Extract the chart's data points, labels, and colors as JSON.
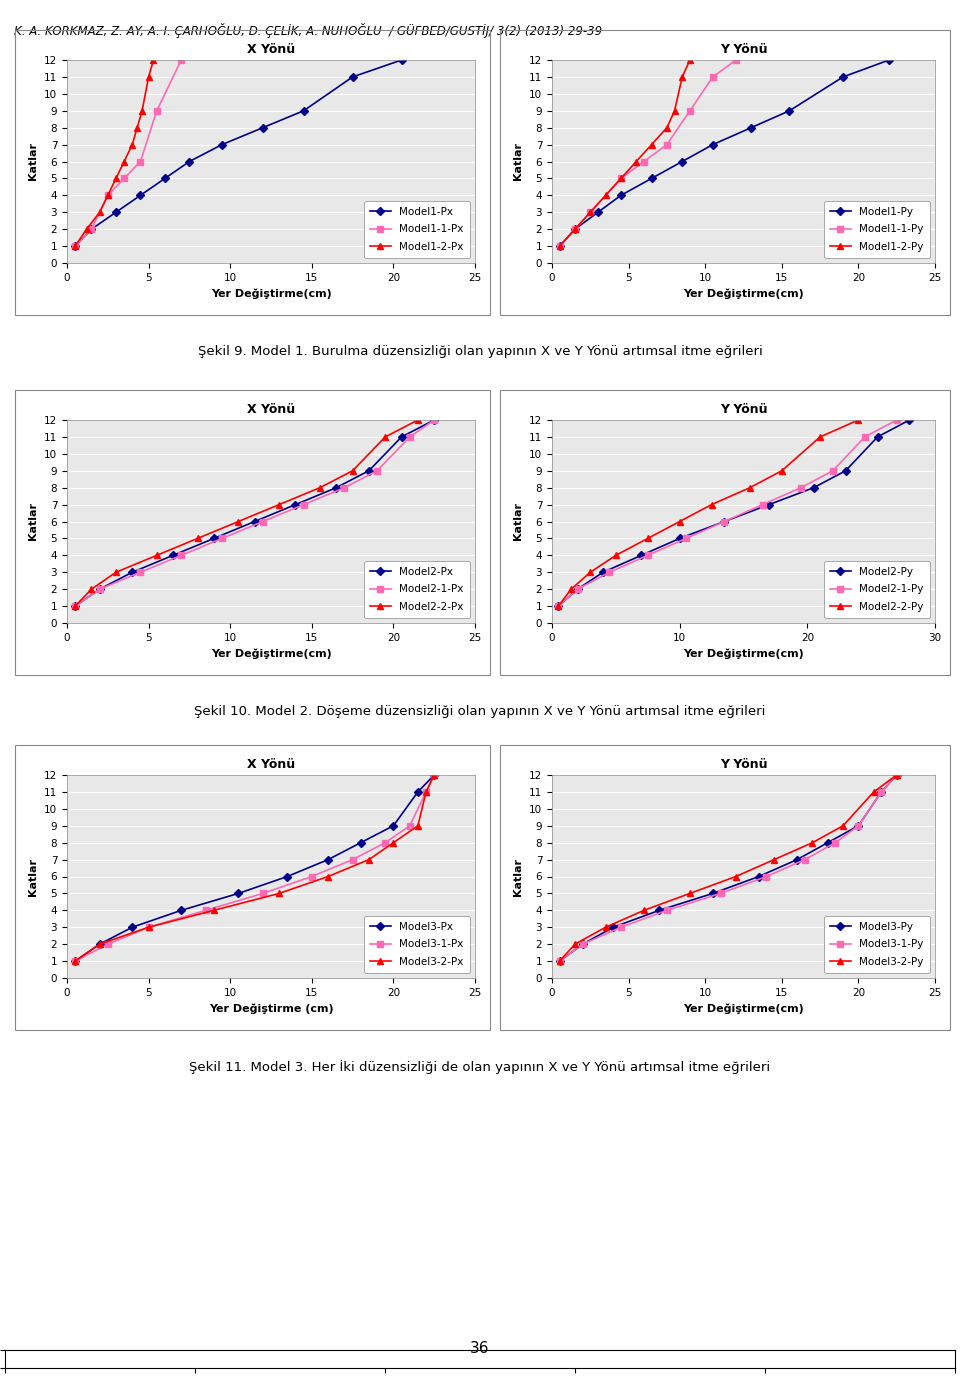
{
  "header": "K. A. KORKMAZ, Z. AY, A. I. ÇARHOĞLU, D. ÇELİK, A. NUHOĞLU  / GÜFBED/GUSTİJ/ 3(2) (2013) 29-39",
  "footer_page": "36",
  "plot1_title": "X Yönü",
  "plot1_xlabel": "Yer Değiştirme(cm)",
  "plot1_ylabel": "Katlar",
  "plot1_xlim": [
    0,
    25
  ],
  "plot1_ylim": [
    0,
    12
  ],
  "plot1_xticks": [
    0,
    5,
    10,
    15,
    20,
    25
  ],
  "plot1_series": [
    {
      "label": "Model1-Px",
      "color": "#00008B",
      "marker": "D",
      "x": [
        0.5,
        1.5,
        3.0,
        4.5,
        6.0,
        7.5,
        9.5,
        12.0,
        14.5,
        17.5,
        20.5
      ],
      "y": [
        1,
        2,
        3,
        4,
        5,
        6,
        7,
        8,
        9,
        11,
        12
      ]
    },
    {
      "label": "Model1-1-Px",
      "color": "#FF69B4",
      "marker": "s",
      "x": [
        0.5,
        1.5,
        2.5,
        3.5,
        4.5,
        5.5,
        7.0
      ],
      "y": [
        1,
        2,
        4,
        5,
        6,
        9,
        12
      ]
    },
    {
      "label": "Model1-2-Px",
      "color": "#FF0000",
      "marker": "^",
      "x": [
        0.5,
        1.2,
        2.0,
        2.5,
        3.0,
        3.5,
        4.0,
        4.3,
        4.6,
        5.0,
        5.3
      ],
      "y": [
        1,
        2,
        3,
        4,
        5,
        6,
        7,
        8,
        9,
        11,
        12
      ]
    }
  ],
  "plot2_title": "Y Yönü",
  "plot2_xlabel": "Yer Değiştirme(cm)",
  "plot2_ylabel": "Katlar",
  "plot2_xlim": [
    0,
    25
  ],
  "plot2_ylim": [
    0,
    12
  ],
  "plot2_xticks": [
    0,
    5,
    10,
    15,
    20,
    25
  ],
  "plot2_series": [
    {
      "label": "Model1-Py",
      "color": "#00008B",
      "marker": "D",
      "x": [
        0.5,
        1.5,
        3.0,
        4.5,
        6.5,
        8.5,
        10.5,
        13.0,
        15.5,
        19.0,
        22.0
      ],
      "y": [
        1,
        2,
        3,
        4,
        5,
        6,
        7,
        8,
        9,
        11,
        12
      ]
    },
    {
      "label": "Model1-1-Py",
      "color": "#FF69B4",
      "marker": "s",
      "x": [
        0.5,
        1.5,
        2.5,
        4.5,
        6.0,
        7.5,
        9.0,
        10.5,
        12.0
      ],
      "y": [
        1,
        2,
        3,
        5,
        6,
        7,
        9,
        11,
        12
      ]
    },
    {
      "label": "Model1-2-Py",
      "color": "#FF0000",
      "marker": "^",
      "x": [
        0.5,
        1.5,
        2.5,
        3.5,
        4.5,
        5.5,
        6.5,
        7.5,
        8.0,
        8.5,
        9.0
      ],
      "y": [
        1,
        2,
        3,
        4,
        5,
        6,
        7,
        8,
        9,
        11,
        12
      ]
    }
  ],
  "plot3_title": "X Yönü",
  "plot3_xlabel": "Yer Değiştirme(cm)",
  "plot3_ylabel": "Katlar",
  "plot3_xlim": [
    0,
    25
  ],
  "plot3_ylim": [
    0,
    12
  ],
  "plot3_xticks": [
    0,
    5,
    10,
    15,
    20,
    25
  ],
  "plot3_series": [
    {
      "label": "Model2-Px",
      "color": "#00008B",
      "marker": "D",
      "x": [
        0.5,
        2.0,
        4.0,
        6.5,
        9.0,
        11.5,
        14.0,
        16.5,
        18.5,
        20.5,
        22.5
      ],
      "y": [
        1,
        2,
        3,
        4,
        5,
        6,
        7,
        8,
        9,
        11,
        12
      ]
    },
    {
      "label": "Model2-1-Px",
      "color": "#FF69B4",
      "marker": "s",
      "x": [
        0.5,
        2.0,
        4.5,
        7.0,
        9.5,
        12.0,
        14.5,
        17.0,
        19.0,
        21.0,
        22.5
      ],
      "y": [
        1,
        2,
        3,
        4,
        5,
        6,
        7,
        8,
        9,
        11,
        12
      ]
    },
    {
      "label": "Model2-2-Px",
      "color": "#FF0000",
      "marker": "^",
      "x": [
        0.5,
        1.5,
        3.0,
        5.5,
        8.0,
        10.5,
        13.0,
        15.5,
        17.5,
        19.5,
        21.5
      ],
      "y": [
        1,
        2,
        3,
        4,
        5,
        6,
        7,
        8,
        9,
        11,
        12
      ]
    }
  ],
  "plot4_title": "Y Yönü",
  "plot4_xlabel": "Yer Değiştirme(cm)",
  "plot4_ylabel": "Katlar",
  "plot4_xlim": [
    0,
    30
  ],
  "plot4_ylim": [
    0,
    12
  ],
  "plot4_xticks": [
    0,
    10,
    20,
    30
  ],
  "plot4_series": [
    {
      "label": "Model2-Py",
      "color": "#00008B",
      "marker": "D",
      "x": [
        0.5,
        2.0,
        4.0,
        7.0,
        10.0,
        13.5,
        17.0,
        20.5,
        23.0,
        25.5,
        28.0
      ],
      "y": [
        1,
        2,
        3,
        4,
        5,
        6,
        7,
        8,
        9,
        11,
        12
      ]
    },
    {
      "label": "Model2-1-Py",
      "color": "#FF69B4",
      "marker": "s",
      "x": [
        0.5,
        2.0,
        4.5,
        7.5,
        10.5,
        13.5,
        16.5,
        19.5,
        22.0,
        24.5,
        27.0
      ],
      "y": [
        1,
        2,
        3,
        4,
        5,
        6,
        7,
        8,
        9,
        11,
        12
      ]
    },
    {
      "label": "Model2-2-Py",
      "color": "#FF0000",
      "marker": "^",
      "x": [
        0.5,
        1.5,
        3.0,
        5.0,
        7.5,
        10.0,
        12.5,
        15.5,
        18.0,
        21.0,
        24.0
      ],
      "y": [
        1,
        2,
        3,
        4,
        5,
        6,
        7,
        8,
        9,
        11,
        12
      ]
    }
  ],
  "plot5_title": "X Yönü",
  "plot5_xlabel": "Yer Değiştirme (cm)",
  "plot5_ylabel": "Katlar",
  "plot5_xlim": [
    0,
    25
  ],
  "plot5_ylim": [
    0,
    12
  ],
  "plot5_xticks": [
    0,
    5,
    10,
    15,
    20,
    25
  ],
  "plot5_series": [
    {
      "label": "Model3-Px",
      "color": "#00008B",
      "marker": "D",
      "x": [
        0.5,
        2.0,
        4.0,
        7.0,
        10.5,
        13.5,
        16.0,
        18.0,
        20.0,
        21.5,
        22.5
      ],
      "y": [
        1,
        2,
        3,
        4,
        5,
        6,
        7,
        8,
        9,
        11,
        12
      ]
    },
    {
      "label": "Model3-1-Px",
      "color": "#FF69B4",
      "marker": "s",
      "x": [
        0.5,
        2.5,
        5.0,
        8.5,
        12.0,
        15.0,
        17.5,
        19.5,
        21.0,
        22.0,
        22.5
      ],
      "y": [
        1,
        2,
        3,
        4,
        5,
        6,
        7,
        8,
        9,
        11,
        12
      ]
    },
    {
      "label": "Model3-2-Px",
      "color": "#FF0000",
      "marker": "^",
      "x": [
        0.5,
        2.0,
        5.0,
        9.0,
        13.0,
        16.0,
        18.5,
        20.0,
        21.5,
        22.0,
        22.5
      ],
      "y": [
        1,
        2,
        3,
        4,
        5,
        6,
        7,
        8,
        9,
        11,
        12
      ]
    }
  ],
  "plot6_title": "Y Yönü",
  "plot6_xlabel": "Yer Değiştirme(cm)",
  "plot6_ylabel": "Katlar",
  "plot6_xlim": [
    0,
    25
  ],
  "plot6_ylim": [
    0,
    12
  ],
  "plot6_xticks": [
    0,
    5,
    10,
    15,
    20,
    25
  ],
  "plot6_series": [
    {
      "label": "Model3-Py",
      "color": "#00008B",
      "marker": "D",
      "x": [
        0.5,
        2.0,
        4.0,
        7.0,
        10.5,
        13.5,
        16.0,
        18.0,
        20.0,
        21.5,
        22.5
      ],
      "y": [
        1,
        2,
        3,
        4,
        5,
        6,
        7,
        8,
        9,
        11,
        12
      ]
    },
    {
      "label": "Model3-1-Py",
      "color": "#FF69B4",
      "marker": "s",
      "x": [
        0.5,
        2.0,
        4.5,
        7.5,
        11.0,
        14.0,
        16.5,
        18.5,
        20.0,
        21.5,
        22.5
      ],
      "y": [
        1,
        2,
        3,
        4,
        5,
        6,
        7,
        8,
        9,
        11,
        12
      ]
    },
    {
      "label": "Model3-2-Py",
      "color": "#FF0000",
      "marker": "^",
      "x": [
        0.5,
        1.5,
        3.5,
        6.0,
        9.0,
        12.0,
        14.5,
        17.0,
        19.0,
        21.0,
        22.5
      ],
      "y": [
        1,
        2,
        3,
        4,
        5,
        6,
        7,
        8,
        9,
        11,
        12
      ]
    }
  ],
  "caption1": "Şekil 9. Model 1. Burulma düzensizliği olan yapının X ve Y Yönü artımsal itme eğrileri",
  "caption2": "Şekil 10. Model 2. Döşeme düzensizliği olan yapının X ve Y Yönü artımsal itme eğrileri",
  "caption3": "Şekil 11. Model 3. Her İki düzensizliği de olan yapının X ve Y Yönü artımsal itme eğrileri",
  "bg_color": "#ffffff",
  "plot_bg_color": "#e8e8e8",
  "grid_color": "#ffffff",
  "box_color": "#cccccc"
}
